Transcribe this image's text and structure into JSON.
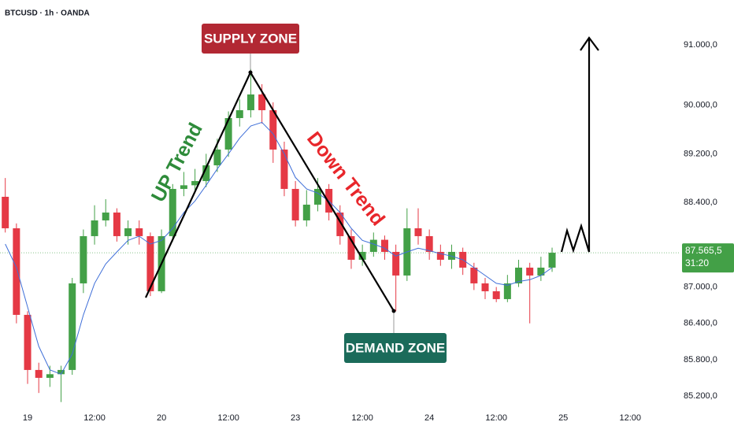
{
  "chart_data": {
    "type": "candlestick",
    "title": "BTCUSD · 1h · OANDA",
    "categories": [
      null,
      null,
      "19",
      null,
      null,
      null,
      null,
      null,
      "12:00",
      null,
      null,
      null,
      null,
      null,
      "20",
      null,
      null,
      null,
      null,
      null,
      "12:00",
      null,
      null,
      null,
      null,
      null,
      "23",
      null,
      null,
      null,
      null,
      null,
      "12:00",
      null,
      null,
      null,
      null,
      null,
      "24",
      null,
      null,
      null,
      null,
      null,
      "12:00",
      null,
      null,
      null,
      null,
      null,
      "25",
      null,
      null,
      null,
      null,
      null,
      "12:00"
    ],
    "open": [
      88490,
      87970,
      86540,
      85630,
      85500,
      85560,
      85630,
      87060,
      87840,
      88100,
      88230,
      87840,
      87970,
      87840,
      86930,
      87840,
      88620,
      88680,
      88750,
      89010,
      89270,
      89790,
      89920,
      90180,
      89920,
      89270,
      88620,
      88100,
      88360,
      88620,
      88230,
      87840,
      87450,
      87580,
      87780,
      87580,
      87190,
      87970,
      87840,
      87580,
      87450,
      87580,
      87320,
      87060,
      86930,
      86800,
      87060,
      87320,
      87190,
      87320,
      null,
      null,
      null,
      null,
      null,
      null,
      null
    ],
    "high": [
      88800,
      88050,
      86600,
      85750,
      85700,
      85700,
      87150,
      87950,
      88350,
      88450,
      88300,
      88100,
      88100,
      87900,
      87950,
      88700,
      88900,
      88950,
      89200,
      89450,
      89900,
      90100,
      90600,
      90350,
      90050,
      89400,
      88750,
      88600,
      88800,
      88700,
      88350,
      87950,
      87700,
      87900,
      87850,
      87700,
      88300,
      88300,
      87950,
      87700,
      87700,
      87650,
      87400,
      87150,
      87000,
      87200,
      87450,
      87400,
      87500,
      87650,
      null,
      null,
      null,
      null,
      null,
      null,
      null
    ],
    "low": [
      87900,
      86400,
      85400,
      85250,
      85350,
      85100,
      85550,
      86900,
      87700,
      88000,
      87750,
      87700,
      87700,
      86850,
      86900,
      87750,
      88500,
      88550,
      88650,
      88900,
      89150,
      89650,
      89800,
      89700,
      89050,
      88500,
      88000,
      88000,
      88250,
      88100,
      87700,
      87300,
      87350,
      87500,
      87450,
      86600,
      87100,
      87700,
      87450,
      87350,
      87300,
      87200,
      86950,
      86800,
      86750,
      86750,
      87000,
      86400,
      87100,
      87250,
      null,
      null,
      null,
      null,
      null,
      null,
      null
    ],
    "close": [
      87970,
      86540,
      85630,
      85500,
      85560,
      85630,
      87060,
      87840,
      88100,
      88230,
      87840,
      87970,
      87840,
      86930,
      87840,
      88620,
      88680,
      88750,
      89010,
      89270,
      89790,
      89920,
      90180,
      89920,
      89270,
      88620,
      88100,
      88360,
      88620,
      88230,
      87840,
      87450,
      87580,
      87780,
      87580,
      87190,
      87970,
      87840,
      87580,
      87450,
      87580,
      87320,
      87060,
      86930,
      86800,
      87060,
      87320,
      87190,
      87320,
      87565.5,
      null,
      null,
      null,
      null,
      null,
      null,
      null
    ],
    "up_color": "#43a047",
    "down_color": "#e53945",
    "moving_average": {
      "color": "#3f6fd8",
      "values": [
        87710,
        87320,
        86670,
        86020,
        85630,
        85560,
        85890,
        86540,
        87060,
        87380,
        87580,
        87770,
        87840,
        87710,
        87770,
        87970,
        88230,
        88420,
        88680,
        88950,
        89200,
        89460,
        89660,
        89720,
        89530,
        89200,
        88810,
        88620,
        88550,
        88420,
        88230,
        87970,
        87770,
        87710,
        87640,
        87510,
        87580,
        87640,
        87600,
        87550,
        87510,
        87450,
        87320,
        87190,
        87060,
        87030,
        87090,
        87120,
        87190,
        87320,
        null,
        null,
        null,
        null,
        null,
        null,
        null
      ]
    },
    "ylim": [
      85044,
      91740
    ],
    "yticks": [
      {
        "value": 85200,
        "label": "85.200,0"
      },
      {
        "value": 85800,
        "label": "85.800,0"
      },
      {
        "value": 86400,
        "label": "86.400,0"
      },
      {
        "value": 87000,
        "label": "87.000,0"
      },
      {
        "value": 88400,
        "label": "88.400,0"
      },
      {
        "value": 89200,
        "label": "89.200,0"
      },
      {
        "value": 90000,
        "label": "90.000,0"
      },
      {
        "value": 91000,
        "label": "91.000,0"
      }
    ],
    "price_label": {
      "value": 87565.5,
      "label": "87.565,5"
    },
    "countdown": "31:20",
    "annotations": {
      "supply_zone": "SUPPLY ZONE",
      "demand_zone": "DEMAND ZONE",
      "up_trend": "UP Trend",
      "down_trend": "Down Trend"
    }
  }
}
